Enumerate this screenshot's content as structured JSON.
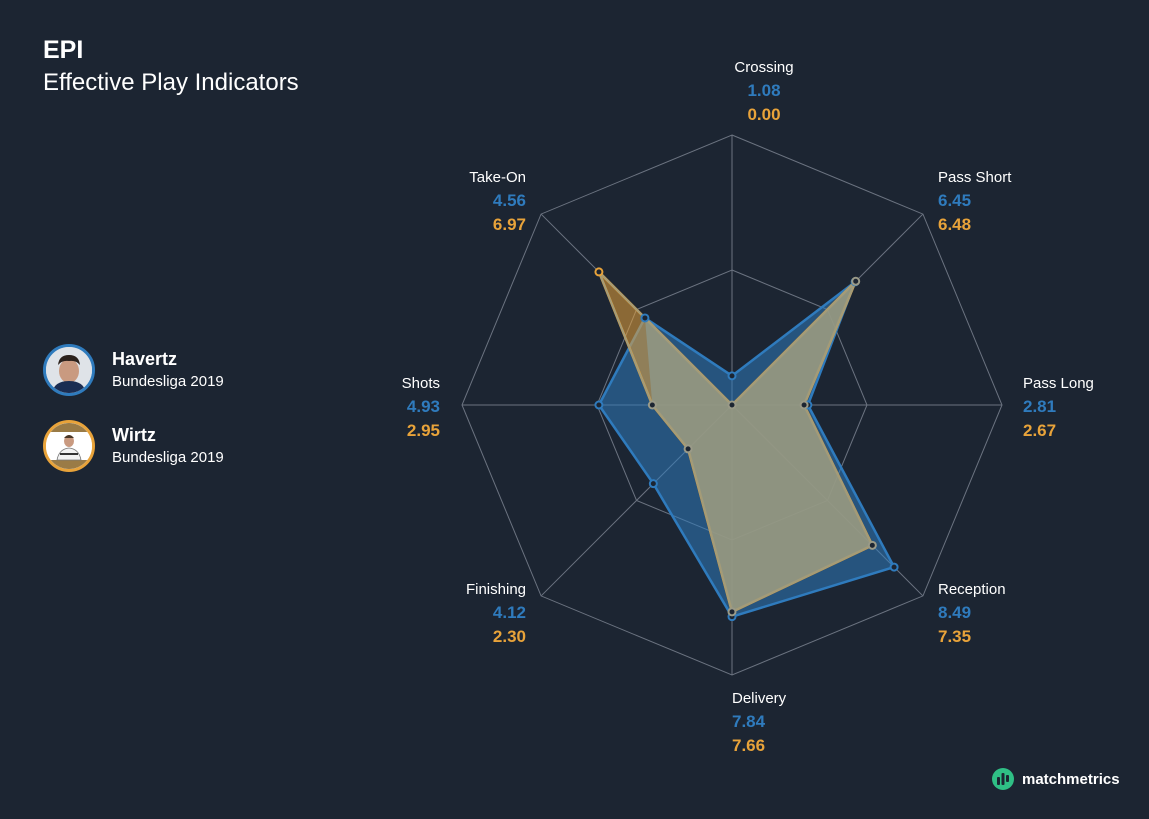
{
  "header": {
    "title": "EPI",
    "subtitle": "Effective Play Indicators"
  },
  "colors": {
    "background": "#1c2532",
    "player1": "#2f7bbd",
    "player2": "#e8a33a",
    "grid": "#6b7380",
    "overlap": "#8d9a8e"
  },
  "players": [
    {
      "name": "Havertz",
      "league": "Bundesliga 2019",
      "color": "#2f7bbd"
    },
    {
      "name": "Wirtz",
      "league": "Bundesliga 2019",
      "color": "#e8a33a"
    }
  ],
  "brand": {
    "name": "matchmetrics",
    "icon": "matchmetrics-logo-icon",
    "color": "#2fbf85"
  },
  "chart_data": {
    "type": "radar",
    "axes": [
      "Crossing",
      "Pass Short",
      "Pass Long",
      "Reception",
      "Delivery",
      "Finishing",
      "Shots",
      "Take-On"
    ],
    "range": [
      0,
      10
    ],
    "grid": true,
    "series": [
      {
        "name": "Havertz",
        "values": [
          1.08,
          6.45,
          2.81,
          8.49,
          7.84,
          4.12,
          4.93,
          4.56
        ],
        "labels": [
          "1.08",
          "6.45",
          "2.81",
          "8.49",
          "7.84",
          "4.12",
          "4.93",
          "4.56"
        ]
      },
      {
        "name": "Wirtz",
        "values": [
          0.0,
          6.48,
          2.67,
          7.35,
          7.66,
          2.3,
          2.95,
          6.97
        ],
        "labels": [
          "0.00",
          "6.48",
          "2.67",
          "7.35",
          "7.66",
          "2.30",
          "2.95",
          "6.97"
        ]
      }
    ]
  }
}
